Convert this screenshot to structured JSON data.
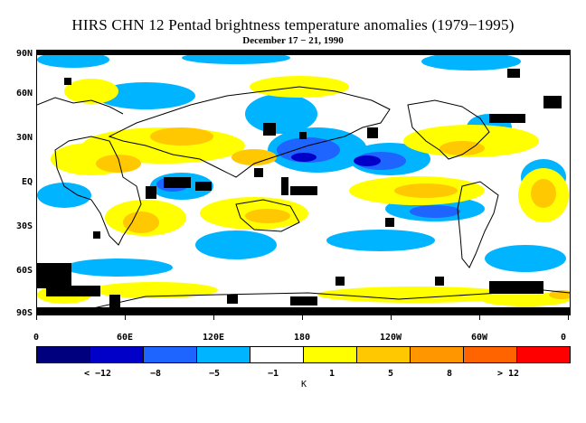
{
  "title": "HIRS CHN 12 Pentad brightness temperature anomalies (1979−1995)",
  "subtitle": "December 17 − 21, 1990",
  "map": {
    "y_labels": [
      "90N",
      "60N",
      "30N",
      "EQ",
      "30S",
      "60S",
      "90S"
    ],
    "x_labels": [
      "0",
      "60E",
      "120E",
      "180",
      "120W",
      "60W",
      "0"
    ]
  },
  "colorbar": {
    "colors": [
      "#00007f",
      "#0000c8",
      "#1e64ff",
      "#00b4ff",
      "#ffffff",
      "#ffff00",
      "#ffc800",
      "#ff9600",
      "#ff6400",
      "#ff0000"
    ],
    "labels": [
      "< −12",
      "−8",
      "−5",
      "−1",
      "1",
      "5",
      "8",
      "> 12"
    ],
    "unit": "K"
  }
}
